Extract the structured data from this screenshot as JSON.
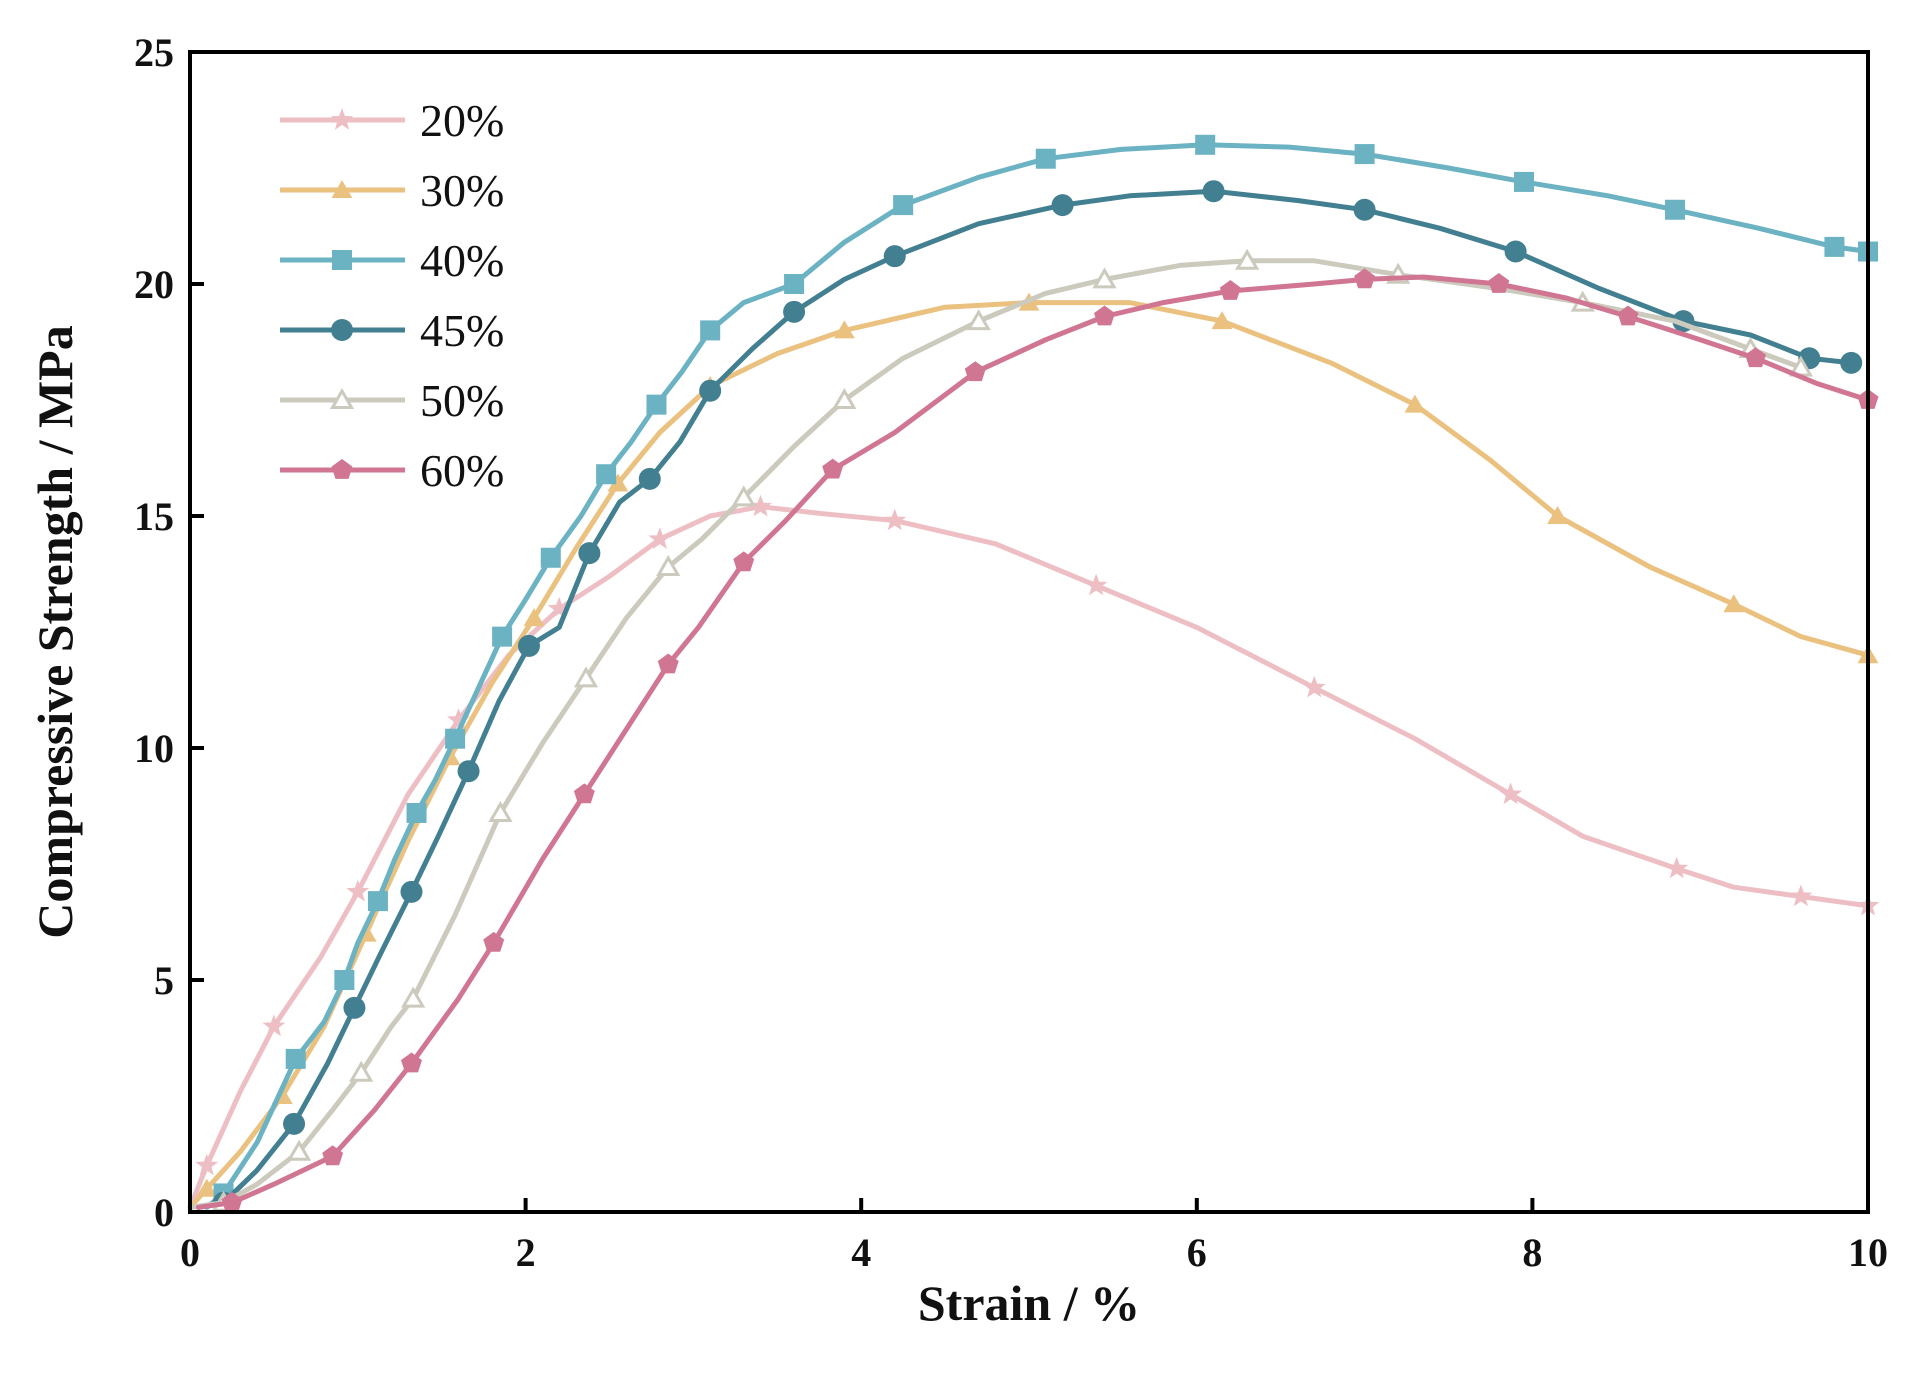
{
  "chart_data": {
    "type": "line",
    "title": "",
    "xlabel": "Strain / %",
    "ylabel": "Compressive Strength / MPa",
    "xlim": [
      0,
      10
    ],
    "ylim": [
      0,
      25
    ],
    "xticks": [
      0,
      2,
      4,
      6,
      8,
      10
    ],
    "yticks": [
      0,
      5,
      10,
      15,
      20,
      25
    ],
    "xtick_labels": [
      "0",
      "2",
      "4",
      "6",
      "8",
      "10"
    ],
    "ytick_labels": [
      "0",
      "5",
      "10",
      "15",
      "20",
      "25"
    ],
    "grid": false,
    "legend_position": "top-left",
    "series": [
      {
        "name": "20%",
        "color": "#EDBFC5",
        "marker": "star",
        "x": [
          0,
          0.1,
          0.3,
          0.5,
          0.78,
          1.0,
          1.3,
          1.6,
          1.9,
          2.2,
          2.5,
          2.8,
          3.1,
          3.4,
          3.77,
          4.2,
          4.8,
          5.4,
          6.0,
          6.7,
          7.3,
          7.87,
          8.3,
          8.86,
          9.2,
          9.6,
          10.0
        ],
        "y": [
          0.1,
          1.0,
          2.6,
          4.0,
          5.5,
          6.9,
          9.0,
          10.6,
          12.0,
          13.0,
          13.7,
          14.5,
          15.0,
          15.2,
          15.05,
          14.9,
          14.4,
          13.5,
          12.6,
          11.3,
          10.2,
          9.0,
          8.1,
          7.4,
          7.0,
          6.8,
          6.6
        ]
      },
      {
        "name": "30%",
        "color": "#EAC17F",
        "marker": "triangle",
        "x": [
          0,
          0.1,
          0.3,
          0.55,
          0.8,
          1.05,
          1.3,
          1.55,
          1.8,
          2.05,
          2.3,
          2.55,
          2.8,
          3.1,
          3.5,
          3.9,
          4.5,
          5.0,
          5.6,
          6.15,
          6.8,
          7.3,
          7.75,
          8.15,
          8.7,
          9.2,
          9.6,
          10.0
        ],
        "y": [
          0.1,
          0.5,
          1.3,
          2.5,
          4.0,
          6.0,
          8.0,
          9.8,
          11.4,
          12.8,
          14.3,
          15.7,
          16.8,
          17.8,
          18.5,
          19.0,
          19.5,
          19.6,
          19.6,
          19.2,
          18.3,
          17.4,
          16.2,
          15.0,
          13.9,
          13.1,
          12.4,
          12.0
        ]
      },
      {
        "name": "40%",
        "color": "#6BB2C3",
        "marker": "square",
        "x": [
          0.1,
          0.2,
          0.4,
          0.63,
          0.8,
          0.92,
          1.0,
          1.12,
          1.22,
          1.35,
          1.46,
          1.58,
          1.72,
          1.86,
          2.0,
          2.15,
          2.33,
          2.48,
          2.63,
          2.78,
          2.93,
          3.1,
          3.3,
          3.6,
          3.9,
          4.25,
          4.7,
          5.1,
          5.55,
          6.05,
          6.55,
          7.0,
          7.5,
          7.95,
          8.45,
          8.85,
          9.35,
          9.8,
          10.0
        ],
        "y": [
          0.1,
          0.4,
          1.5,
          3.3,
          4.1,
          5.0,
          5.8,
          6.7,
          7.6,
          8.6,
          9.3,
          10.2,
          11.3,
          12.4,
          13.2,
          14.1,
          15.0,
          15.9,
          16.6,
          17.4,
          18.1,
          19.0,
          19.6,
          20.0,
          20.9,
          21.7,
          22.3,
          22.7,
          22.9,
          23.0,
          22.95,
          22.8,
          22.5,
          22.2,
          21.9,
          21.6,
          21.2,
          20.8,
          20.7
        ]
      },
      {
        "name": "45%",
        "color": "#427F91",
        "marker": "circle",
        "x": [
          0.05,
          0.2,
          0.4,
          0.62,
          0.82,
          0.98,
          1.14,
          1.32,
          1.48,
          1.66,
          1.84,
          2.02,
          2.2,
          2.38,
          2.56,
          2.74,
          2.92,
          3.1,
          3.35,
          3.6,
          3.9,
          4.2,
          4.7,
          5.2,
          5.6,
          6.1,
          6.6,
          7.0,
          7.45,
          7.9,
          8.4,
          8.9,
          9.3,
          9.65,
          9.9
        ],
        "y": [
          0.1,
          0.2,
          0.9,
          1.9,
          3.2,
          4.4,
          5.6,
          6.9,
          8.1,
          9.5,
          11.0,
          12.2,
          12.6,
          14.2,
          15.3,
          15.8,
          16.6,
          17.7,
          18.6,
          19.4,
          20.1,
          20.6,
          21.3,
          21.7,
          21.9,
          22.0,
          21.8,
          21.6,
          21.2,
          20.7,
          19.9,
          19.2,
          18.9,
          18.4,
          18.3
        ]
      },
      {
        "name": "50%",
        "color": "#CCCABD",
        "marker": "triangle-open",
        "x": [
          0,
          0.2,
          0.4,
          0.65,
          0.85,
          1.02,
          1.2,
          1.33,
          1.58,
          1.85,
          2.1,
          2.36,
          2.6,
          2.85,
          3.05,
          3.3,
          3.6,
          3.9,
          4.25,
          4.7,
          5.1,
          5.45,
          5.9,
          6.3,
          6.7,
          7.2,
          7.8,
          8.3,
          8.85,
          9.3,
          9.6
        ],
        "y": [
          0.1,
          0.2,
          0.6,
          1.3,
          2.2,
          3.0,
          4.0,
          4.6,
          6.4,
          8.6,
          10.1,
          11.5,
          12.8,
          13.9,
          14.5,
          15.4,
          16.5,
          17.5,
          18.4,
          19.2,
          19.8,
          20.1,
          20.4,
          20.5,
          20.5,
          20.2,
          19.9,
          19.6,
          19.2,
          18.6,
          18.2
        ]
      },
      {
        "name": "60%",
        "color": "#D17692",
        "marker": "pentagon",
        "x": [
          0.05,
          0.25,
          0.5,
          0.85,
          1.1,
          1.32,
          1.6,
          1.81,
          2.1,
          2.35,
          2.6,
          2.85,
          3.03,
          3.3,
          3.55,
          3.83,
          4.2,
          4.68,
          5.1,
          5.45,
          5.8,
          6.2,
          6.7,
          7.0,
          7.35,
          7.8,
          8.2,
          8.57,
          9.0,
          9.33,
          9.7,
          10.0
        ],
        "y": [
          0.1,
          0.2,
          0.6,
          1.2,
          2.2,
          3.2,
          4.6,
          5.8,
          7.6,
          9.0,
          10.4,
          11.8,
          12.6,
          14.0,
          14.9,
          16.0,
          16.8,
          18.1,
          18.8,
          19.3,
          19.6,
          19.85,
          20.0,
          20.1,
          20.15,
          20.0,
          19.7,
          19.3,
          18.8,
          18.4,
          17.85,
          17.5
        ]
      }
    ]
  }
}
